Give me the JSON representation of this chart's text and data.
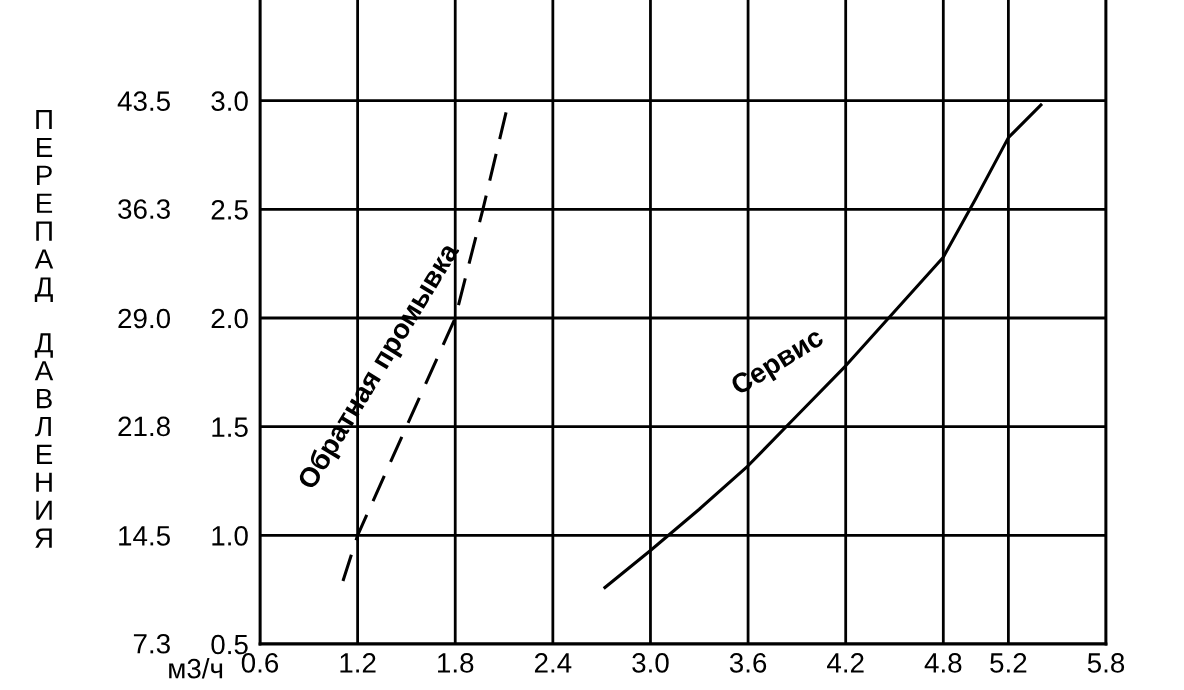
{
  "chart_data": {
    "type": "line",
    "ylabel": "ПЕРЕПАД ДАВЛЕНИЯ",
    "xlabel": "м3/ч",
    "xlim": [
      0.6,
      5.8
    ],
    "xticks": [
      0.6,
      1.2,
      1.8,
      2.4,
      {
        "value": 3,
        "label": "3.0"
      },
      3.6,
      4.2,
      4.8,
      5.2,
      5.8
    ],
    "ylim": [
      0.5,
      3.5
    ],
    "yticks": [
      0.5,
      {
        "value": 1,
        "label": "1.0"
      },
      1.5,
      {
        "value": 2,
        "label": "2.0"
      },
      2.5,
      {
        "value": 3,
        "label": "3.0"
      }
    ],
    "y2lim": [
      7.25,
      50.75
    ],
    "y2ticks": [
      7.3,
      14.5,
      21.8,
      {
        "value": 29,
        "label": "29.0"
      },
      36.3,
      43.5
    ],
    "grid": true,
    "legend": false,
    "series": [
      {
        "name": "Обратная промывка",
        "color": "#000000",
        "line_style": "dashed",
        "x": [
          1.11,
          1.2,
          1.5,
          1.8,
          1.97,
          2.12
        ],
        "values": [
          0.79,
          1.0,
          1.5,
          2.0,
          2.5,
          2.97
        ]
      },
      {
        "name": "Сервис",
        "color": "#000000",
        "line_style": "solid",
        "x": [
          2.72,
          3.0,
          3.3,
          3.6,
          3.9,
          4.2,
          4.5,
          4.8,
          5.0,
          5.2,
          5.4
        ],
        "values": [
          0.76,
          0.93,
          1.12,
          1.32,
          1.55,
          1.78,
          2.03,
          2.28,
          2.55,
          2.83,
          2.98
        ]
      }
    ]
  }
}
